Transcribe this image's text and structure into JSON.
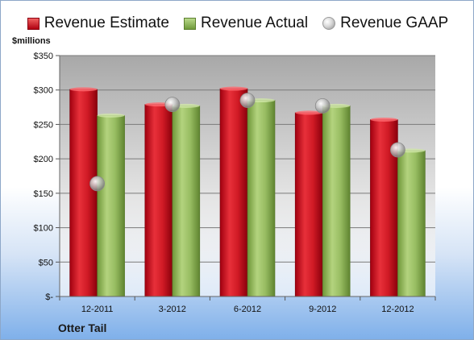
{
  "chart_data": {
    "type": "bar",
    "title": "",
    "ylabel": "$millions",
    "xlabel": "",
    "categories": [
      "12-2011",
      "3-2012",
      "6-2012",
      "9-2012",
      "12-2012"
    ],
    "series": [
      {
        "name": "Revenue Estimate",
        "kind": "bar",
        "color": "#c8101e",
        "values": [
          301,
          279,
          302,
          267,
          257
        ]
      },
      {
        "name": "Revenue Actual",
        "kind": "bar",
        "color": "#8fb35a",
        "values": [
          263,
          277,
          285,
          277,
          212
        ]
      },
      {
        "name": "Revenue GAAP",
        "kind": "marker",
        "color": "#b8b8b8",
        "values": [
          164,
          279,
          285,
          277,
          213
        ]
      }
    ],
    "ylim": [
      0,
      350
    ],
    "yticks": [
      0,
      50,
      100,
      150,
      200,
      250,
      300,
      350
    ],
    "ytick_labels": [
      "$-",
      "$50",
      "$100",
      "$150",
      "$200",
      "$250",
      "$300",
      "$350"
    ],
    "grid": true,
    "legend_position": "top"
  },
  "company": "Otter Tail"
}
